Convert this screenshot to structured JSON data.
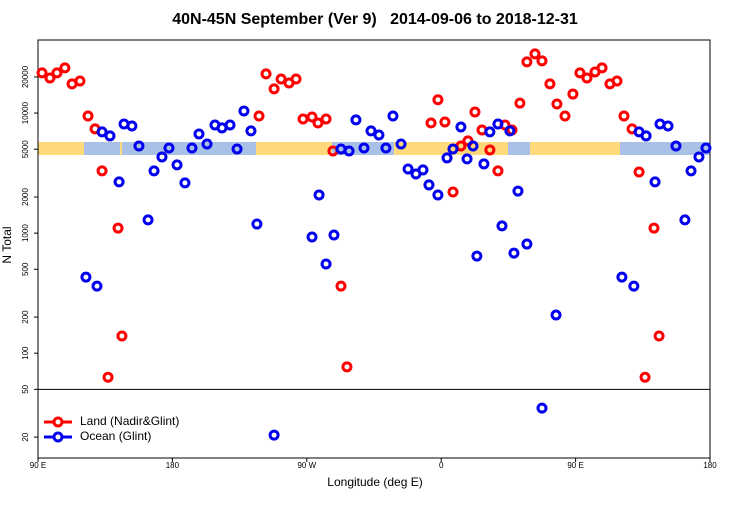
{
  "chart_data": {
    "type": "scatter",
    "title": "40N-45N September (Ver 9)   2014-09-06 to 2018-12-31",
    "x_label": "Longitude (deg E)",
    "y_label": "N Total",
    "log_y": true,
    "legend": "lower left",
    "xlim": [
      90,
      540
    ],
    "xticks": [
      {
        "value": 90,
        "label": "90 E"
      },
      {
        "value": 180,
        "label": "180"
      },
      {
        "value": 270,
        "label": "90 W"
      },
      {
        "value": 360,
        "label": "0"
      },
      {
        "value": 450,
        "label": "90 E"
      },
      {
        "value": 540,
        "label": "180"
      }
    ],
    "ylim": [
      13.4,
      40600
    ],
    "yticks": [
      20,
      50,
      100,
      200,
      500,
      1000,
      2000,
      5000,
      10000,
      20000
    ],
    "series": [
      {
        "name": "Land (Nadir&Glint)",
        "color": "#ff0000",
        "x": [
          92.7,
          98,
          102.7,
          108,
          112.8,
          118.1,
          123.5,
          128.2,
          132.9,
          136.9,
          143.6,
          146.2,
          238,
          242.7,
          248.1,
          252.8,
          258.1,
          262.8,
          267.5,
          273.5,
          277.5,
          282.9,
          287.5,
          292.9,
          296.9,
          353.2,
          357.8,
          362.5,
          367.9,
          373.2,
          377.9,
          382.6,
          387.3,
          392.6,
          398,
          402.7,
          407.4,
          412.7,
          417.4,
          422.8,
          427.5,
          432.8,
          437.5,
          442.9,
          448.2,
          452.9,
          457.6,
          463,
          467.7,
          473,
          477.7,
          482.4,
          487.8,
          492.5,
          496.5,
          502.5,
          505.9
        ],
        "values": [
          21600,
          19600,
          21600,
          23800,
          17500,
          18500,
          9460,
          7380,
          3300,
          63,
          1100,
          139,
          9460,
          21200,
          15900,
          19200,
          17800,
          19200,
          8930,
          9280,
          8270,
          8930,
          4830,
          362,
          77,
          8270,
          12900,
          8430,
          2200,
          5320,
          5860,
          10200,
          7230,
          4930,
          3300,
          7960,
          7230,
          12100,
          26700,
          31100,
          27200,
          17500,
          11900,
          9460,
          14400,
          21600,
          19600,
          22000,
          23800,
          17500,
          18500,
          9460,
          7380,
          3230,
          63,
          1100,
          139
        ]
      },
      {
        "name": "Ocean (Glint)",
        "color": "#0000ee",
        "x": [
          122.1,
          129.5,
          132.9,
          138.2,
          144.3,
          147.6,
          152.9,
          157.6,
          163.7,
          167.7,
          173,
          177.7,
          183.1,
          188.4,
          193.1,
          197.8,
          203.2,
          208.5,
          213.2,
          218.6,
          223.3,
          227.9,
          232.6,
          236.6,
          248.1,
          273.5,
          278.2,
          282.9,
          288.2,
          292.9,
          298.3,
          302.9,
          308.3,
          313,
          318.3,
          323,
          327.7,
          333.1,
          337.8,
          343.1,
          347.8,
          351.8,
          357.8,
          363.9,
          367.9,
          373.2,
          377.3,
          381.3,
          383.9,
          388.6,
          392.6,
          398,
          400.7,
          406,
          408.7,
          411.4,
          417.4,
          427.5,
          436.9,
          481,
          489,
          492.5,
          497.2,
          503.2,
          506.5,
          511.9,
          517.2,
          523.2,
          527.3,
          532.6,
          537.3
        ],
        "values": [
          430,
          362,
          6970,
          6450,
          2670,
          8110,
          7810,
          5320,
          1290,
          3300,
          4310,
          5120,
          3700,
          2620,
          5120,
          6700,
          5530,
          7960,
          7520,
          7960,
          5020,
          10400,
          7100,
          1190,
          20.8,
          928,
          2080,
          553,
          964,
          5020,
          4830,
          8770,
          5120,
          7100,
          6570,
          5120,
          9460,
          5530,
          3420,
          3110,
          3360,
          2520,
          2080,
          4230,
          5020,
          7660,
          4150,
          5320,
          644,
          3770,
          6970,
          8110,
          1150,
          7100,
          682,
          2240,
          811,
          34.9,
          208,
          430,
          362,
          6970,
          6450,
          2670,
          8110,
          7810,
          5320,
          1290,
          3300,
          4310,
          5120
        ]
      }
    ]
  }
}
